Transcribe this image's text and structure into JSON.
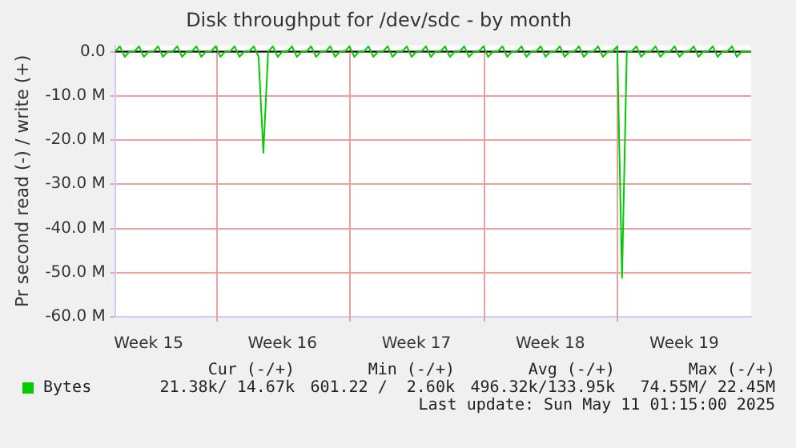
{
  "chart_data": {
    "type": "line",
    "title": "Disk throughput for /dev/sdc - by month",
    "ylabel": "Pr second read (-) / write (+)",
    "categories": [
      null,
      null,
      null,
      null,
      null,
      null,
      null,
      "Week 15",
      null,
      null,
      null,
      null,
      null,
      null,
      null,
      null,
      null,
      null,
      null,
      null,
      null,
      null,
      null,
      null,
      null,
      null,
      null,
      null,
      null,
      null,
      null,
      null,
      null,
      null,
      null,
      "Week 16",
      null,
      null,
      null,
      null,
      null,
      null,
      null,
      null,
      null,
      null,
      null,
      null,
      null,
      null,
      null,
      null,
      null,
      null,
      null,
      null,
      null,
      null,
      null,
      null,
      null,
      null,
      null,
      "Week 17",
      null,
      null,
      null,
      null,
      null,
      null,
      null,
      null,
      null,
      null,
      null,
      null,
      null,
      null,
      null,
      null,
      null,
      null,
      null,
      null,
      null,
      null,
      null,
      null,
      null,
      null,
      null,
      "Week 18",
      null,
      null,
      null,
      null,
      null,
      null,
      null,
      null,
      null,
      null,
      null,
      null,
      null,
      null,
      null,
      null,
      null,
      null,
      null,
      null,
      null,
      null,
      null,
      null,
      null,
      null,
      null,
      "Week 19",
      null,
      null,
      null,
      null,
      null,
      null,
      null,
      null,
      null,
      null,
      null,
      null,
      null,
      null
    ],
    "series": [
      {
        "name": "Bytes",
        "color": "#00cc00",
        "values": [
          0,
          1.2,
          -1.2,
          0,
          0,
          1.2,
          -1.2,
          0,
          0,
          1.2,
          -1.2,
          0,
          0,
          1.2,
          -1.2,
          0,
          0,
          1.2,
          -1.2,
          0,
          0,
          1.2,
          -1.2,
          0,
          0,
          1.2,
          -1.2,
          0,
          0,
          1.2,
          -1.2,
          -22.9,
          0,
          1.2,
          -1.2,
          0,
          0,
          1.2,
          -1.2,
          0,
          0,
          1.2,
          -1.2,
          0,
          0,
          1.2,
          -1.2,
          0,
          0,
          1.2,
          -1.2,
          0,
          0,
          1.2,
          -1.2,
          0,
          0,
          1.2,
          -1.2,
          0,
          0,
          1.2,
          -1.2,
          0,
          0,
          1.2,
          -1.2,
          0,
          0,
          1.2,
          -1.2,
          0,
          0,
          1.2,
          -1.2,
          0,
          0,
          1.2,
          -1.2,
          0,
          0,
          1.2,
          -1.2,
          0,
          0,
          1.2,
          -1.2,
          0,
          0,
          1.2,
          -1.2,
          0,
          0,
          1.2,
          -1.2,
          0,
          0,
          1.2,
          -1.2,
          0,
          0,
          1.2,
          -1.2,
          0,
          0,
          1.2,
          -51.2,
          0,
          0,
          1.2,
          -1.2,
          0,
          0,
          1.2,
          -1.2,
          0,
          0,
          1.2,
          -1.2,
          0,
          0,
          1.2,
          -1.2,
          0,
          0,
          1.2,
          -1.2,
          0,
          0,
          1.2,
          -1.2,
          0,
          0,
          0
        ]
      }
    ],
    "ylim": [
      -60,
      1.4
    ],
    "yticks": [
      {
        "value": -60,
        "label": "-60.0 M"
      },
      {
        "value": -50,
        "label": "-50.0 M"
      },
      {
        "value": -40,
        "label": "-40.0 M"
      },
      {
        "value": -30,
        "label": "-30.0 M"
      },
      {
        "value": -20,
        "label": "-20.0 M"
      },
      {
        "value": -10,
        "label": "-10.0 M"
      },
      {
        "value": 0,
        "label": "0.0"
      }
    ],
    "ref_lines": [
      {
        "axis": "y",
        "value": 0,
        "label": null,
        "color": "#000000"
      }
    ],
    "grid": true,
    "legend": "bottom left",
    "marker": "none",
    "line_style": "solid",
    "annotations": [
      "Cur (-/+)",
      "Min (-/+)",
      "Avg (-/+)",
      "Max (-/+)",
      "21.38k/ 14.67k",
      "601.22 /  2.60k",
      "496.32k/133.95k",
      "74.55M/ 22.45M",
      "Last update: Sun May 11 01:15:00 2025"
    ]
  }
}
